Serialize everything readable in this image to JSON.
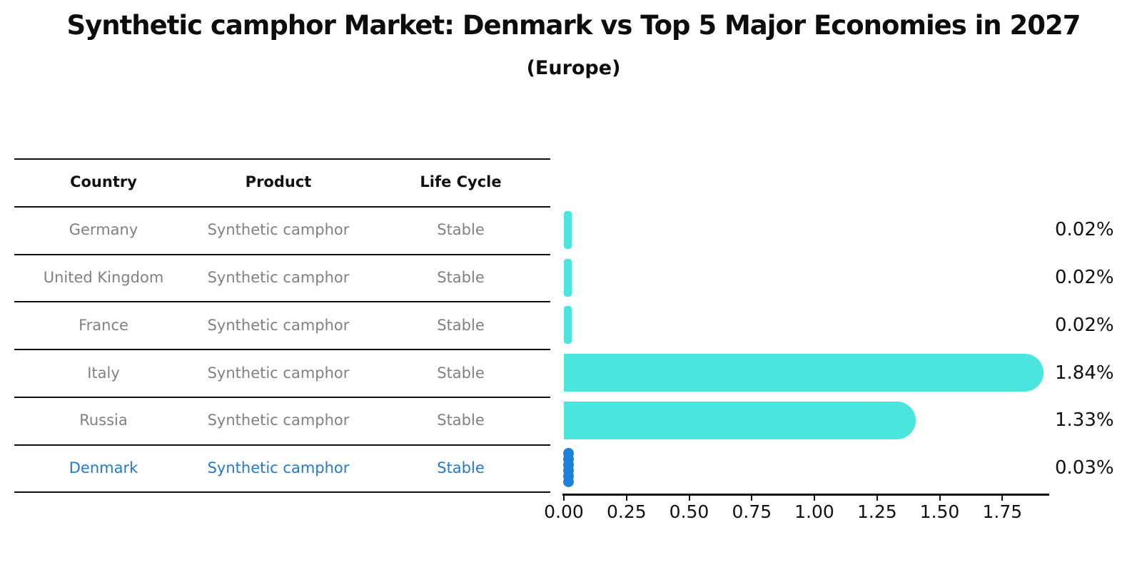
{
  "title": "Synthetic camphor Market: Denmark vs Top 5 Major Economies in 2027",
  "subtitle": "(Europe)",
  "table": {
    "headers": [
      "Country",
      "Product",
      "Life Cycle"
    ],
    "rows": [
      {
        "country": "Germany",
        "product": "Synthetic camphor",
        "life_cycle": "Stable",
        "highlight": false
      },
      {
        "country": "United Kingdom",
        "product": "Synthetic camphor",
        "life_cycle": "Stable",
        "highlight": false
      },
      {
        "country": "France",
        "product": "Synthetic camphor",
        "life_cycle": "Stable",
        "highlight": false
      },
      {
        "country": "Italy",
        "product": "Synthetic camphor",
        "life_cycle": "Stable",
        "highlight": false
      },
      {
        "country": "Russia",
        "product": "Synthetic camphor",
        "life_cycle": "Stable",
        "highlight": false
      },
      {
        "country": "Denmark",
        "product": "Synthetic camphor",
        "life_cycle": "Stable",
        "highlight": true
      }
    ]
  },
  "chart_data": {
    "type": "bar",
    "orientation": "horizontal",
    "title": "Synthetic camphor Market: Denmark vs Top 5 Major Economies in 2027 (Europe)",
    "categories": [
      "Germany",
      "United Kingdom",
      "France",
      "Italy",
      "Russia",
      "Denmark"
    ],
    "values": [
      0.02,
      0.02,
      0.02,
      1.84,
      1.33,
      0.03
    ],
    "value_labels": [
      "0.02%",
      "0.02%",
      "0.02%",
      "1.84%",
      "1.33%",
      "0.03%"
    ],
    "x_ticks": [
      "0.00",
      "0.25",
      "0.50",
      "0.75",
      "1.00",
      "1.25",
      "1.50",
      "1.75"
    ],
    "xlim": [
      0,
      1.94
    ],
    "grid": false,
    "legend": "none",
    "highlight_index": 5,
    "bar_color": "#4AE5DD",
    "highlight_color": "#1E80D9",
    "highlight_text_color": "#2878C9",
    "row_text_color": "#808080"
  }
}
